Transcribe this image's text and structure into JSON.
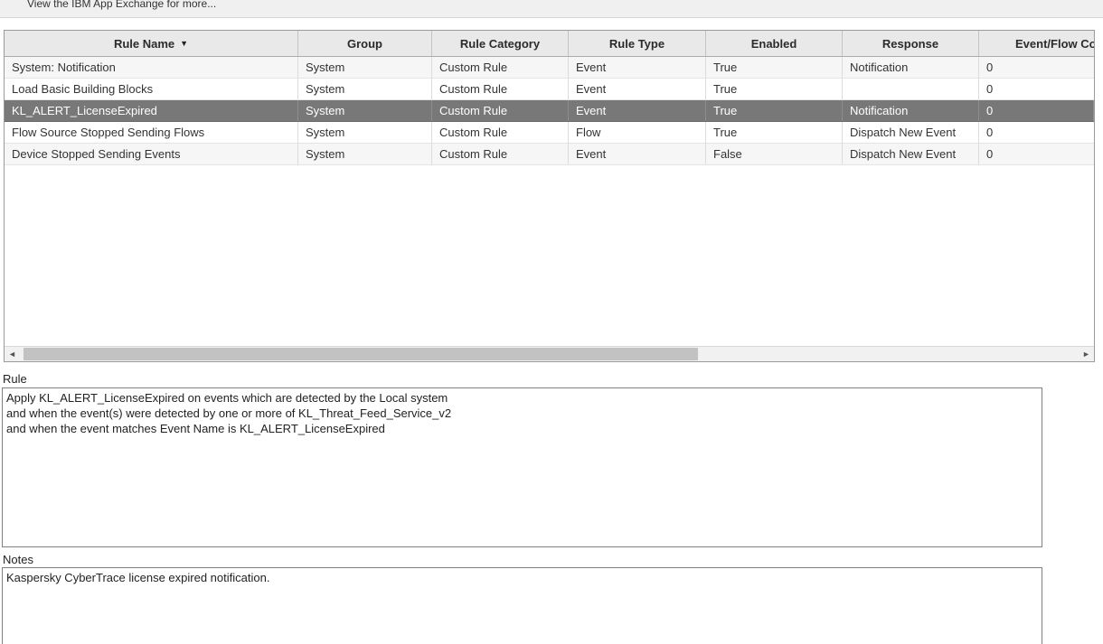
{
  "topbar": {
    "label": "View the IBM App Exchange for more..."
  },
  "icons": {
    "sort_desc": "▼",
    "scroll_left": "◄",
    "scroll_right": "►"
  },
  "table": {
    "columns": [
      {
        "label": "Rule Name",
        "sorted": "desc"
      },
      {
        "label": "Group"
      },
      {
        "label": "Rule Category"
      },
      {
        "label": "Rule Type"
      },
      {
        "label": "Enabled"
      },
      {
        "label": "Response"
      },
      {
        "label": "Event/Flow Cou"
      }
    ],
    "rows": [
      {
        "selected": false,
        "cells": [
          "System: Notification",
          "System",
          "Custom Rule",
          "Event",
          "True",
          "Notification",
          "0"
        ]
      },
      {
        "selected": false,
        "cells": [
          "Load Basic Building Blocks",
          "System",
          "Custom Rule",
          "Event",
          "True",
          "",
          "0"
        ]
      },
      {
        "selected": true,
        "cells": [
          "KL_ALERT_LicenseExpired",
          "System",
          "Custom Rule",
          "Event",
          "True",
          "Notification",
          "0"
        ]
      },
      {
        "selected": false,
        "cells": [
          "Flow Source Stopped Sending Flows",
          "System",
          "Custom Rule",
          "Flow",
          "True",
          "Dispatch New Event",
          "0"
        ]
      },
      {
        "selected": false,
        "cells": [
          "Device Stopped Sending Events",
          "System",
          "Custom Rule",
          "Event",
          "False",
          "Dispatch New Event",
          "0"
        ]
      }
    ],
    "selected_row_name": "KL_ALERT_LicenseExpired"
  },
  "rule_section": {
    "label": "Rule",
    "text": "Apply KL_ALERT_LicenseExpired on events which are detected by the Local system\nand when the event(s) were detected by one or more of KL_Threat_Feed_Service_v2\nand when the event matches Event Name is KL_ALERT_LicenseExpired"
  },
  "notes_section": {
    "label": "Notes",
    "text": "Kaspersky CyberTrace license expired notification."
  },
  "colors": {
    "selected_row_bg": "#787878",
    "header_bg": "#e9e9e9",
    "row_alt_bg": "#f6f6f6",
    "topbar_bg": "#f0f0f0",
    "scroll_thumb": "#c2c2c2"
  }
}
